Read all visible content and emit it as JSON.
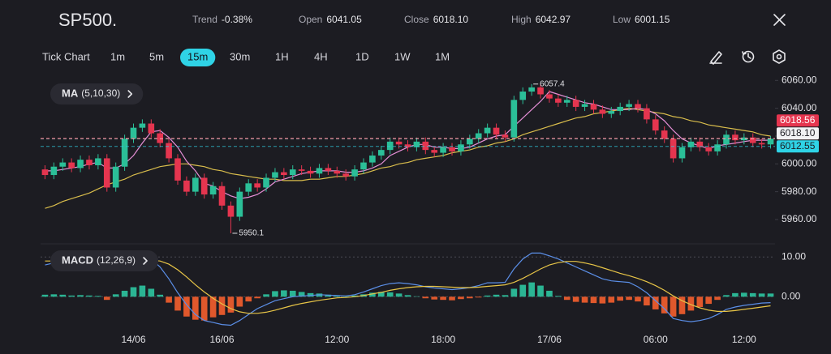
{
  "header": {
    "symbol": "SP500.",
    "stats": [
      {
        "label": "Trend",
        "value": "-0.38%"
      },
      {
        "label": "Open",
        "value": "6041.05"
      },
      {
        "label": "Close",
        "value": "6018.10"
      },
      {
        "label": "High",
        "value": "6042.97"
      },
      {
        "label": "Low",
        "value": "6001.15"
      }
    ]
  },
  "toolbar": {
    "timeframes": [
      "Tick Chart",
      "1m",
      "5m",
      "15m",
      "30m",
      "1H",
      "4H",
      "1D",
      "1W",
      "1M"
    ],
    "active": "15m"
  },
  "chart_data": [
    {
      "type": "candlestick",
      "indicator": "MA",
      "params": "(5,10,30)",
      "up_color": "#2bbf98",
      "down_color": "#e5354f",
      "open": [
        5996,
        5992,
        5998,
        6001,
        5997,
        6003,
        5999,
        6004,
        5983,
        5998,
        6018,
        6026,
        6029,
        6022,
        6015,
        6004,
        5988,
        5980,
        5990,
        5978,
        5984,
        5970,
        5962,
        5980,
        5986,
        5983,
        5990,
        5994,
        5992,
        5996,
        5995,
        5993,
        5997,
        5995,
        5993,
        5991,
        5996,
        6001,
        6006,
        6010,
        6016,
        6014,
        6012,
        6016,
        6010,
        6008,
        6012,
        6009,
        6014,
        6018,
        6022,
        6026,
        6021,
        6019,
        6046,
        6052,
        6055,
        6050,
        6047,
        6044,
        6046,
        6041,
        6043,
        6039,
        6036,
        6038,
        6041,
        6043,
        6040,
        6032,
        6024,
        6018,
        6004,
        6012,
        6016,
        6012,
        6009,
        6014,
        6021,
        6017,
        6019,
        6015,
        6014
      ],
      "high": [
        5999,
        6001,
        6004,
        6004,
        6006,
        6006,
        6007,
        6007,
        6001,
        6021,
        6029,
        6032,
        6032,
        6025,
        6018,
        6007,
        5991,
        5993,
        5993,
        5987,
        5987,
        5973,
        5983,
        5989,
        5989,
        5993,
        5997,
        5997,
        5999,
        5999,
        5998,
        6000,
        6000,
        5998,
        5996,
        5999,
        6004,
        6009,
        6013,
        6019,
        6019,
        6017,
        6019,
        6019,
        6013,
        6015,
        6015,
        6017,
        6021,
        6025,
        6029,
        6029,
        6024,
        6049,
        6055,
        6057.4,
        6057,
        6053,
        6050,
        6049,
        6049,
        6046,
        6046,
        6042,
        6041,
        6044,
        6046,
        6046,
        6043,
        6035,
        6027,
        6021,
        6015,
        6019,
        6019,
        6015,
        6017,
        6024,
        6024,
        6022,
        6022,
        6018,
        6020
      ],
      "low": [
        5989,
        5989,
        5995,
        5994,
        5994,
        5996,
        5996,
        5980,
        5980,
        5995,
        6015,
        6023,
        6019,
        6012,
        6001,
        5985,
        5977,
        5977,
        5975,
        5975,
        5967,
        5950.1,
        5959,
        5977,
        5980,
        5980,
        5987,
        5989,
        5989,
        5992,
        5990,
        5990,
        5992,
        5990,
        5988,
        5988,
        5993,
        5998,
        6003,
        6007,
        6011,
        6009,
        6009,
        6007,
        6005,
        6005,
        6006,
        6006,
        6011,
        6015,
        6019,
        6018,
        6016,
        6016,
        6043,
        6049,
        6047,
        6044,
        6041,
        6041,
        6038,
        6038,
        6036,
        6033,
        6033,
        6035,
        6038,
        6037,
        6029,
        6021,
        6015,
        6001,
        6001,
        6009,
        6009,
        6006,
        6006,
        6011,
        6014,
        6014,
        6012,
        6011,
        6011
      ],
      "close": [
        5992,
        5998,
        6001,
        5997,
        6003,
        5999,
        6004,
        5983,
        5998,
        6018,
        6026,
        6029,
        6022,
        6015,
        6004,
        5988,
        5980,
        5990,
        5978,
        5984,
        5970,
        5962,
        5980,
        5986,
        5983,
        5990,
        5994,
        5992,
        5996,
        5995,
        5993,
        5997,
        5995,
        5993,
        5991,
        5996,
        6001,
        6006,
        6010,
        6016,
        6014,
        6012,
        6016,
        6010,
        6008,
        6012,
        6009,
        6014,
        6018,
        6022,
        6026,
        6021,
        6019,
        6046,
        6052,
        6055,
        6050,
        6047,
        6044,
        6046,
        6041,
        6043,
        6039,
        6036,
        6038,
        6041,
        6043,
        6040,
        6032,
        6024,
        6018,
        6004,
        6012,
        6016,
        6012,
        6009,
        6014,
        6021,
        6017,
        6019,
        6015,
        6014,
        6018.1
      ],
      "ma_lines": [
        {
          "color": "#d9bd4c",
          "values": [
            5968,
            5970,
            5973,
            5975,
            5977,
            5979,
            5982,
            5985,
            5987,
            5989,
            5992,
            5994,
            5996,
            5998,
            5999,
            6000,
            6000,
            5999,
            5998,
            5996,
            5995,
            5993,
            5992,
            5991,
            5990,
            5989,
            5989,
            5988,
            5988,
            5988,
            5989,
            5989,
            5990,
            5991,
            5991,
            5992,
            5993,
            5995,
            5997,
            5998,
            6000,
            6001,
            6003,
            6004,
            6005,
            6006,
            6008,
            6009,
            6010,
            6012,
            6013,
            6015,
            6016,
            6018,
            6021,
            6023,
            6025,
            6027,
            6029,
            6031,
            6033,
            6034,
            6036,
            6037,
            6038,
            6039,
            6040,
            6039,
            6038,
            6037,
            6036,
            6034,
            6033,
            6031,
            6030,
            6028,
            6027,
            6026,
            6025,
            6024,
            6023,
            6021,
            6020
          ]
        },
        {
          "color": "#e58fd6",
          "values": [
            5995,
            5995,
            5996,
            5997,
            5998,
            6000,
            6001,
            5997,
            5997,
            6000,
            6006,
            6015,
            6023,
            6024,
            6019,
            6012,
            6002,
            5995,
            5986,
            5984,
            5980,
            5977,
            5975,
            5976,
            5978,
            5982,
            5987,
            5989,
            5991,
            5993,
            5994,
            5995,
            5995,
            5995,
            5994,
            5994,
            5995,
            5997,
            6000,
            6006,
            6009,
            6012,
            6014,
            6014,
            6012,
            6012,
            6011,
            6011,
            6012,
            6015,
            6018,
            6020,
            6021,
            6027,
            6033,
            6039,
            6045,
            6052,
            6050,
            6048,
            6046,
            6044,
            6043,
            6041,
            6039,
            6039,
            6039,
            6040,
            6039,
            6036,
            6031,
            6024,
            6018,
            6015,
            6013,
            6011,
            6013,
            6014,
            6015,
            6016,
            6017,
            6017,
            6017
          ]
        }
      ],
      "ylim": [
        5946,
        6066
      ],
      "yticks": [
        {
          "value": 5960,
          "label": "5960.00"
        },
        {
          "value": 5980,
          "label": "5980.00"
        },
        {
          "value": 6000,
          "label": "6000.00"
        },
        {
          "value": 6020,
          "label": "6020.00"
        },
        {
          "value": 6040,
          "label": "6040.00"
        },
        {
          "value": 6060,
          "label": "6060.00"
        }
      ],
      "annotations": [
        {
          "index": 55,
          "value": 6057.4
        },
        {
          "index": 21,
          "value": 5950.1
        }
      ],
      "price_lines": [
        {
          "value": 6018.56,
          "label": "6018.56",
          "color": "#e5354f",
          "text_color": "#ffffff"
        },
        {
          "value": 6018.1,
          "label": "6018.10",
          "color": "#f2f2f4",
          "text_color": "#1c1c22"
        },
        {
          "value": 6012.55,
          "label": "6012.55",
          "color": "#2fd3e6",
          "text_color": "#1c1c22"
        }
      ]
    },
    {
      "type": "macd",
      "indicator": "MACD",
      "params": "(12,26,9)",
      "categories": [
        null,
        null,
        null,
        null,
        null,
        null,
        null,
        null,
        null,
        null,
        "14/06",
        null,
        null,
        null,
        null,
        null,
        null,
        null,
        null,
        null,
        "16/06",
        null,
        null,
        null,
        null,
        null,
        null,
        null,
        null,
        null,
        null,
        null,
        null,
        "12:00",
        null,
        null,
        null,
        null,
        null,
        null,
        null,
        null,
        null,
        null,
        null,
        "18:00",
        null,
        null,
        null,
        null,
        null,
        null,
        null,
        null,
        null,
        null,
        null,
        "17/06",
        null,
        null,
        null,
        null,
        null,
        null,
        null,
        null,
        null,
        null,
        null,
        "06:00",
        null,
        null,
        null,
        null,
        null,
        null,
        null,
        null,
        null,
        "12:00",
        null,
        null,
        null
      ],
      "pos_color": "#2bb594",
      "neg_color": "#e0582c",
      "histogram": [
        0.5,
        0.6,
        0.5,
        0.3,
        0.4,
        0.3,
        0.2,
        -0.8,
        0.6,
        1.5,
        2.4,
        2.8,
        2.0,
        0.5,
        -1.5,
        -3.5,
        -5.0,
        -5.8,
        -6.0,
        -5.2,
        -4.6,
        -4.0,
        -2.5,
        -1.2,
        -0.4,
        0.6,
        1.4,
        1.6,
        1.5,
        1.2,
        0.9,
        0.8,
        0.5,
        0.3,
        0.1,
        0.3,
        0.6,
        1.0,
        1.2,
        1.1,
        0.8,
        0.4,
        0.1,
        -0.4,
        -0.7,
        -0.8,
        -0.9,
        -0.6,
        -0.4,
        -0.2,
        0.3,
        0.5,
        0.4,
        2.0,
        3.0,
        3.6,
        2.8,
        1.5,
        0.2,
        -0.8,
        -1.3,
        -1.5,
        -1.6,
        -1.7,
        -1.5,
        -1.0,
        -0.8,
        -1.2,
        -2.2,
        -3.2,
        -4.2,
        -5.0,
        -4.4,
        -3.5,
        -2.6,
        -1.8,
        -0.8,
        0.4,
        0.9,
        1.0,
        0.9,
        0.8,
        0.8
      ],
      "series": [
        {
          "color": "#5b8fe8",
          "values": [
            8,
            8.5,
            9,
            9,
            8.8,
            8.6,
            8.2,
            6.5,
            7,
            8.5,
            10,
            10.5,
            9.5,
            7.5,
            4.5,
            1,
            -2,
            -4.5,
            -6,
            -6.5,
            -7,
            -7.2,
            -6,
            -4.5,
            -3,
            -2,
            -1,
            -0.5,
            0,
            0.2,
            0.3,
            0.5,
            0.4,
            0.3,
            0.2,
            0.5,
            1.2,
            2,
            2.8,
            3.3,
            3.5,
            3.3,
            3,
            2.5,
            2.2,
            2,
            1.8,
            2,
            2.3,
            2.8,
            3.5,
            3.5,
            3.6,
            7,
            9.5,
            11,
            11,
            10.3,
            9.5,
            8.5,
            7.5,
            6.5,
            5.5,
            4.5,
            4,
            3.8,
            3.6,
            2.5,
            1,
            -1,
            -3,
            -5.5,
            -6,
            -6.3,
            -6,
            -5.5,
            -4.5,
            -3.2,
            -2.6,
            -2.2,
            -1.9,
            -1.6,
            -1.5
          ]
        },
        {
          "color": "#e8c547",
          "values": [
            9,
            9,
            9,
            9,
            9,
            8.9,
            8.7,
            8.3,
            8,
            8.1,
            8.5,
            9,
            9.2,
            9,
            8.2,
            6.8,
            5,
            3,
            1.2,
            -0.4,
            -1.8,
            -3,
            -3.8,
            -4.2,
            -4.2,
            -3.9,
            -3.4,
            -2.8,
            -2.2,
            -1.7,
            -1.3,
            -0.9,
            -0.6,
            -0.3,
            -0.2,
            0,
            0.3,
            0.7,
            1.1,
            1.6,
            2,
            2.3,
            2.5,
            2.6,
            2.6,
            2.5,
            2.4,
            2.3,
            2.3,
            2.4,
            2.6,
            2.8,
            3,
            3.6,
            4.6,
            5.8,
            7,
            8,
            8.6,
            8.9,
            8.9,
            8.5,
            8,
            7.3,
            6.6,
            5.9,
            5.3,
            4.6,
            3.8,
            2.8,
            1.6,
            0.2,
            -1,
            -2,
            -2.8,
            -3.4,
            -3.7,
            -3.7,
            -3.5,
            -3.2,
            -2.9,
            -2.6,
            -2.3
          ]
        }
      ],
      "ylim": [
        -7.5,
        12
      ],
      "yticks": [
        {
          "value": 0,
          "label": "0.00"
        },
        {
          "value": 10,
          "label": "10.00"
        }
      ]
    }
  ]
}
